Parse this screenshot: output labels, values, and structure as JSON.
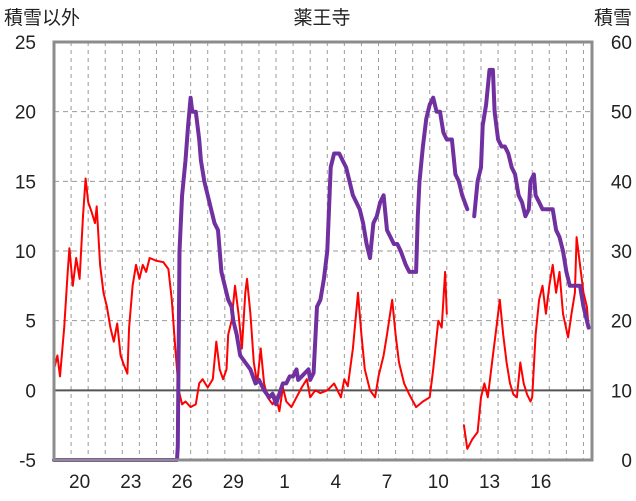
{
  "chart_data": {
    "type": "line",
    "title": "薬王寺",
    "left_axis_label": "積雪以外",
    "right_axis_label": "積雪",
    "left_ylim": [
      -5,
      25
    ],
    "left_yticks": [
      -5,
      0,
      5,
      10,
      15,
      20,
      25
    ],
    "right_ylim": [
      0,
      60
    ],
    "right_yticks": [
      0,
      10,
      20,
      30,
      40,
      50,
      60
    ],
    "x_range": [
      0,
      31.5
    ],
    "x_ticks": [
      {
        "label": "20",
        "x": 1.5
      },
      {
        "label": "23",
        "x": 4.5
      },
      {
        "label": "26",
        "x": 7.5
      },
      {
        "label": "29",
        "x": 10.5
      },
      {
        "label": "1",
        "x": 13.5
      },
      {
        "label": "4",
        "x": 16.5
      },
      {
        "label": "7",
        "x": 19.5
      },
      {
        "label": "10",
        "x": 22.5
      },
      {
        "label": "13",
        "x": 25.5
      },
      {
        "label": "16",
        "x": 28.5
      }
    ],
    "grid": true,
    "colors": {
      "red": "#ff0000",
      "purple": "#7030a0",
      "grid": "#9a9a9a",
      "frame": "#8c8c8c"
    },
    "series": [
      {
        "color": "#ff0000",
        "axis": "left",
        "segments": [
          [
            [
              0.0,
              1.5
            ],
            [
              0.2,
              2.5
            ],
            [
              0.35,
              1.0
            ],
            [
              0.6,
              4.5
            ],
            [
              0.8,
              8.5
            ],
            [
              0.9,
              10.2
            ],
            [
              1.1,
              7.5
            ],
            [
              1.3,
              9.5
            ],
            [
              1.5,
              8.0
            ],
            [
              1.7,
              12.5
            ],
            [
              1.85,
              15.2
            ],
            [
              2.0,
              13.5
            ],
            [
              2.2,
              12.8
            ],
            [
              2.4,
              12.0
            ],
            [
              2.5,
              13.2
            ],
            [
              2.7,
              9.0
            ],
            [
              2.9,
              7.0
            ],
            [
              3.1,
              6.0
            ],
            [
              3.3,
              4.5
            ],
            [
              3.5,
              3.5
            ],
            [
              3.7,
              4.8
            ],
            [
              3.9,
              2.5
            ],
            [
              4.1,
              1.8
            ],
            [
              4.3,
              1.2
            ],
            [
              4.4,
              4.5
            ],
            [
              4.6,
              7.5
            ],
            [
              4.8,
              9.0
            ],
            [
              5.0,
              8.0
            ],
            [
              5.2,
              9.0
            ],
            [
              5.4,
              8.5
            ],
            [
              5.6,
              9.5
            ],
            [
              6.0,
              9.3
            ],
            [
              6.4,
              9.2
            ],
            [
              6.7,
              8.7
            ],
            [
              6.9,
              6.5
            ],
            [
              7.1,
              3.0
            ],
            [
              7.3,
              0.0
            ],
            [
              7.5,
              -1.0
            ],
            [
              7.7,
              -0.8
            ],
            [
              8.0,
              -1.2
            ],
            [
              8.3,
              -1.0
            ],
            [
              8.5,
              0.5
            ],
            [
              8.7,
              0.8
            ],
            [
              9.0,
              0.2
            ],
            [
              9.3,
              0.8
            ],
            [
              9.5,
              3.5
            ],
            [
              9.7,
              1.5
            ],
            [
              9.9,
              0.8
            ],
            [
              10.1,
              1.5
            ],
            [
              10.2,
              4.0
            ],
            [
              10.4,
              5.0
            ],
            [
              10.6,
              7.5
            ],
            [
              10.8,
              5.5
            ],
            [
              11.0,
              3.0
            ],
            [
              11.2,
              7.0
            ],
            [
              11.3,
              8.0
            ],
            [
              11.5,
              5.5
            ],
            [
              11.7,
              2.0
            ],
            [
              11.9,
              0.5
            ],
            [
              12.1,
              3.0
            ],
            [
              12.3,
              0.5
            ],
            [
              12.5,
              -0.5
            ],
            [
              12.8,
              -1.0
            ],
            [
              13.0,
              -0.5
            ],
            [
              13.2,
              -1.5
            ],
            [
              13.4,
              0.2
            ],
            [
              13.6,
              -0.8
            ],
            [
              13.9,
              -1.2
            ],
            [
              14.2,
              -0.5
            ],
            [
              14.5,
              0.2
            ],
            [
              14.8,
              0.8
            ],
            [
              15.0,
              -0.5
            ],
            [
              15.3,
              0.0
            ],
            [
              15.6,
              -0.2
            ],
            [
              16.0,
              0.0
            ],
            [
              16.4,
              0.5
            ],
            [
              16.8,
              -0.5
            ],
            [
              17.0,
              0.8
            ],
            [
              17.2,
              0.3
            ],
            [
              17.5,
              3.0
            ],
            [
              17.8,
              7.0
            ],
            [
              18.0,
              4.0
            ],
            [
              18.2,
              1.5
            ],
            [
              18.5,
              0.0
            ],
            [
              18.8,
              -0.5
            ],
            [
              19.0,
              1.0
            ],
            [
              19.3,
              2.5
            ],
            [
              19.5,
              4.0
            ],
            [
              19.8,
              6.5
            ],
            [
              20.0,
              4.0
            ],
            [
              20.2,
              2.0
            ],
            [
              20.5,
              0.5
            ],
            [
              20.8,
              -0.3
            ],
            [
              21.2,
              -1.2
            ],
            [
              21.6,
              -0.8
            ],
            [
              22.0,
              -0.5
            ],
            [
              22.2,
              1.5
            ],
            [
              22.5,
              5.0
            ],
            [
              22.7,
              4.5
            ],
            [
              22.9,
              8.5
            ],
            [
              23.0,
              5.5
            ]
          ],
          [
            [
              24.0,
              -2.5
            ],
            [
              24.2,
              -4.2
            ],
            [
              24.5,
              -3.5
            ],
            [
              24.8,
              -3.0
            ],
            [
              25.0,
              -0.5
            ],
            [
              25.2,
              0.5
            ],
            [
              25.4,
              -0.5
            ],
            [
              25.7,
              2.5
            ],
            [
              25.9,
              4.5
            ],
            [
              26.1,
              6.5
            ],
            [
              26.3,
              4.0
            ],
            [
              26.5,
              2.0
            ],
            [
              26.7,
              0.5
            ],
            [
              26.9,
              -0.3
            ],
            [
              27.1,
              -0.5
            ],
            [
              27.3,
              2.0
            ],
            [
              27.5,
              0.5
            ],
            [
              27.7,
              -0.3
            ],
            [
              27.9,
              -0.8
            ],
            [
              28.0,
              -0.5
            ],
            [
              28.2,
              4.0
            ],
            [
              28.4,
              6.5
            ],
            [
              28.6,
              7.5
            ],
            [
              28.8,
              5.5
            ],
            [
              29.0,
              7.5
            ],
            [
              29.2,
              9.0
            ],
            [
              29.4,
              7.0
            ],
            [
              29.6,
              8.5
            ],
            [
              29.8,
              5.5
            ],
            [
              30.1,
              3.8
            ],
            [
              30.3,
              5.5
            ],
            [
              30.5,
              7.0
            ],
            [
              30.6,
              11.0
            ],
            [
              30.8,
              9.0
            ],
            [
              31.0,
              7.0
            ],
            [
              31.2,
              6.0
            ],
            [
              31.3,
              4.5
            ]
          ]
        ]
      },
      {
        "color": "#7030a0",
        "axis": "right",
        "segments": [
          [
            [
              0.0,
              0
            ],
            [
              7.2,
              0
            ],
            [
              7.25,
              2
            ],
            [
              7.35,
              30
            ],
            [
              7.5,
              38
            ],
            [
              7.7,
              43
            ],
            [
              7.85,
              48
            ],
            [
              8.0,
              52
            ],
            [
              8.1,
              50
            ],
            [
              8.3,
              50
            ],
            [
              8.5,
              46
            ],
            [
              8.6,
              43
            ],
            [
              8.8,
              40
            ],
            [
              9.0,
              38
            ],
            [
              9.2,
              36
            ],
            [
              9.4,
              34
            ],
            [
              9.6,
              33
            ],
            [
              9.8,
              27
            ],
            [
              10.0,
              25
            ],
            [
              10.2,
              23
            ],
            [
              10.4,
              22
            ],
            [
              10.5,
              20
            ],
            [
              10.7,
              18
            ],
            [
              10.9,
              15
            ],
            [
              11.2,
              14
            ],
            [
              11.5,
              13
            ],
            [
              11.8,
              11
            ],
            [
              12.0,
              11.5
            ],
            [
              12.3,
              10
            ],
            [
              12.6,
              9
            ],
            [
              12.8,
              9.5
            ],
            [
              13.0,
              8
            ],
            [
              13.2,
              9.5
            ],
            [
              13.4,
              11
            ],
            [
              13.6,
              11
            ],
            [
              13.8,
              12
            ],
            [
              14.0,
              12
            ],
            [
              14.2,
              13
            ],
            [
              14.3,
              11.5
            ],
            [
              14.5,
              12
            ],
            [
              14.7,
              12.5
            ],
            [
              14.9,
              13
            ],
            [
              15.0,
              11.5
            ],
            [
              15.2,
              12.5
            ],
            [
              15.4,
              22
            ],
            [
              15.6,
              23
            ],
            [
              15.8,
              26
            ],
            [
              16.0,
              30
            ],
            [
              16.2,
              42
            ],
            [
              16.4,
              44
            ],
            [
              16.7,
              44
            ],
            [
              16.9,
              43
            ],
            [
              17.1,
              42
            ],
            [
              17.3,
              40
            ],
            [
              17.5,
              38
            ],
            [
              17.7,
              37
            ],
            [
              17.9,
              36
            ],
            [
              18.1,
              34
            ],
            [
              18.3,
              31
            ],
            [
              18.5,
              29
            ],
            [
              18.7,
              34
            ],
            [
              18.9,
              35
            ],
            [
              19.1,
              37
            ],
            [
              19.3,
              38
            ],
            [
              19.5,
              33
            ],
            [
              19.7,
              32
            ],
            [
              19.9,
              31
            ],
            [
              20.1,
              31
            ],
            [
              20.3,
              30
            ],
            [
              20.6,
              28
            ],
            [
              20.8,
              27
            ],
            [
              21.0,
              27
            ],
            [
              21.2,
              27
            ],
            [
              21.3,
              35
            ],
            [
              21.4,
              40
            ],
            [
              21.6,
              45
            ],
            [
              21.8,
              49
            ],
            [
              22.0,
              51
            ],
            [
              22.2,
              52
            ],
            [
              22.4,
              50
            ],
            [
              22.6,
              50
            ],
            [
              22.8,
              47
            ],
            [
              23.0,
              46
            ],
            [
              23.3,
              46
            ],
            [
              23.5,
              41
            ],
            [
              23.7,
              40
            ],
            [
              23.9,
              38
            ],
            [
              24.2,
              36
            ]
          ],
          [
            [
              24.6,
              35
            ],
            [
              24.8,
              40
            ],
            [
              25.0,
              42
            ],
            [
              25.1,
              48
            ],
            [
              25.3,
              51
            ],
            [
              25.5,
              56
            ],
            [
              25.7,
              56
            ],
            [
              25.8,
              50
            ],
            [
              26.0,
              46
            ],
            [
              26.2,
              45
            ],
            [
              26.4,
              45
            ],
            [
              26.6,
              44
            ],
            [
              26.8,
              42
            ],
            [
              27.0,
              41
            ],
            [
              27.2,
              38
            ],
            [
              27.4,
              37
            ],
            [
              27.6,
              35
            ],
            [
              27.8,
              36
            ],
            [
              27.9,
              40
            ],
            [
              28.1,
              41
            ],
            [
              28.2,
              38
            ],
            [
              28.4,
              37
            ],
            [
              28.6,
              36
            ],
            [
              28.8,
              36
            ],
            [
              29.0,
              36
            ],
            [
              29.2,
              36
            ],
            [
              29.4,
              33
            ],
            [
              29.6,
              32
            ],
            [
              29.8,
              30
            ],
            [
              30.0,
              27
            ],
            [
              30.2,
              25
            ],
            [
              30.4,
              25
            ],
            [
              30.6,
              25
            ],
            [
              30.8,
              25
            ],
            [
              31.0,
              22
            ],
            [
              31.2,
              20
            ],
            [
              31.3,
              19
            ]
          ]
        ]
      }
    ]
  }
}
